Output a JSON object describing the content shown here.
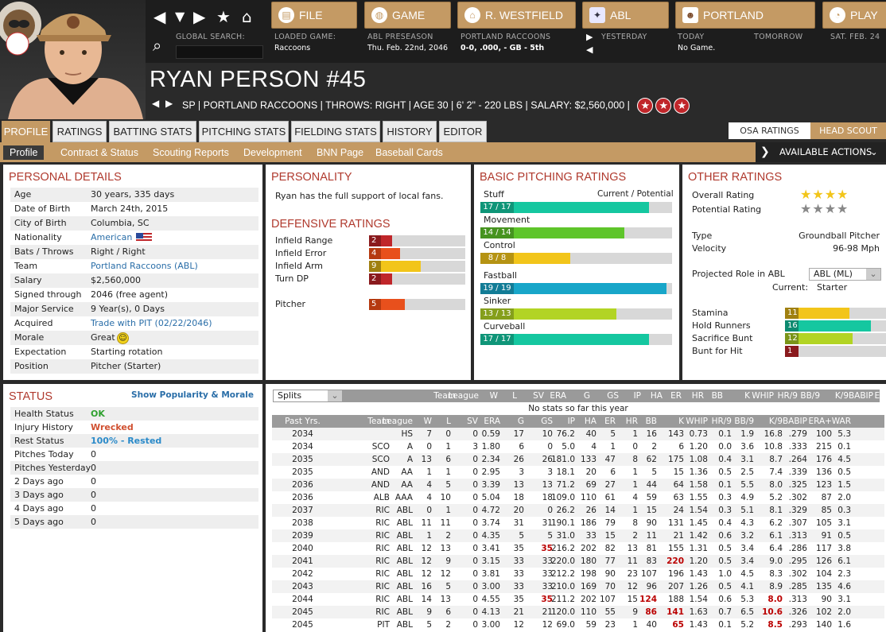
{
  "nav": {
    "file": "FILE",
    "game": "GAME",
    "team": "R. WESTFIELD",
    "league": "ABL",
    "club": "PORTLAND",
    "play": "PLAY"
  },
  "info": {
    "search_label": "GLOBAL SEARCH:",
    "loaded_label": "LOADED GAME:",
    "loaded_value": "Raccoons",
    "league_label": "ABL PRESEASON",
    "league_value": "Thu. Feb. 22nd, 2046",
    "team_label": "PORTLAND RACCOONS",
    "team_value": "0-0, .000, - GB - 5th",
    "yesterday": "YESTERDAY",
    "today_label": "TODAY",
    "today_value": "No Game.",
    "tomorrow": "TOMORROW",
    "sat": "SAT. FEB. 24"
  },
  "player": {
    "name": "RYAN PERSON  #45",
    "line": "SP | PORTLAND RACCOONS  |  THROWS: RIGHT  |  AGE 30  |  6' 2\" - 220 LBS  |  SALARY: $2,560,000  |"
  },
  "tabs": [
    "PROFILE",
    "RATINGS",
    "BATTING STATS",
    "PITCHING STATS",
    "FIELDING STATS",
    "HISTORY",
    "EDITOR"
  ],
  "right_tabs": {
    "osa": "OSA RATINGS",
    "scout": "HEAD SCOUT"
  },
  "subtabs": [
    "Profile",
    "Contract & Status",
    "Scouting Reports",
    "Development",
    "BNN Page",
    "Baseball Cards"
  ],
  "actions": "AVAILABLE ACTIONS",
  "personal": {
    "title": "PERSONAL DETAILS",
    "rows": [
      {
        "k": "Age",
        "v": "30 years, 335 days"
      },
      {
        "k": "Date of Birth",
        "v": "March 24th, 2015"
      },
      {
        "k": "City of Birth",
        "v": "Columbia, SC"
      },
      {
        "k": "Nationality",
        "v": "American"
      },
      {
        "k": "Bats / Throws",
        "v": "Right / Right"
      },
      {
        "k": "Team",
        "v": "Portland Raccoons (ABL)"
      },
      {
        "k": "Salary",
        "v": "$2,560,000"
      },
      {
        "k": "Signed through",
        "v": "2046 (free agent)"
      },
      {
        "k": "Major Service",
        "v": "9 Year(s), 0 Days"
      },
      {
        "k": "Acquired",
        "v": "Trade with PIT (02/22/2046)"
      },
      {
        "k": "Morale",
        "v": "Great"
      },
      {
        "k": "Expectation",
        "v": "Starting rotation"
      },
      {
        "k": "Position",
        "v": "Pitcher (Starter)"
      }
    ]
  },
  "personality": {
    "title": "PERSONALITY",
    "text": "Ryan has the full support of local fans."
  },
  "defensive": {
    "title": "DEFENSIVE RATINGS",
    "rows": [
      {
        "k": "Infield Range",
        "v": "2",
        "frac": 0.24,
        "color": "#c0262a",
        "dark": "#8a1a1d"
      },
      {
        "k": "Infield Error",
        "v": "4",
        "frac": 0.32,
        "color": "#e8501c",
        "dark": "#b53a10"
      },
      {
        "k": "Infield Arm",
        "v": "9",
        "frac": 0.54,
        "color": "#f2c51a",
        "dark": "#a08010"
      },
      {
        "k": "Turn DP",
        "v": "2",
        "frac": 0.24,
        "color": "#c0262a",
        "dark": "#8a1a1d"
      },
      {
        "k": "Pitcher",
        "v": "5",
        "frac": 0.37,
        "color": "#e8501c",
        "dark": "#b53a10"
      }
    ]
  },
  "pitching": {
    "title": "BASIC PITCHING RATINGS",
    "head": "Current / Potential",
    "rows": [
      {
        "k": "Stuff",
        "v": "17 / 17",
        "frac": 0.88,
        "color": "#15c7a0"
      },
      {
        "k": "Movement",
        "v": "14 / 14",
        "frac": 0.75,
        "color": "#5ec52a"
      },
      {
        "k": "Control",
        "v": "8 / 8",
        "frac": 0.47,
        "color": "#f2c51a"
      },
      {
        "k": "Fastball",
        "v": "19 / 19",
        "frac": 0.97,
        "color": "#18a6c9"
      },
      {
        "k": "Sinker",
        "v": "13 / 13",
        "frac": 0.71,
        "color": "#b2d424"
      },
      {
        "k": "Curveball",
        "v": "17 / 17",
        "frac": 0.88,
        "color": "#15c7a0"
      }
    ]
  },
  "other": {
    "title": "OTHER RATINGS",
    "overall_label": "Overall Rating",
    "overall_stars": 4,
    "potential_label": "Potential Rating",
    "potential_stars": 4,
    "type_label": "Type",
    "type_value": "Groundball Pitcher",
    "velo_label": "Velocity",
    "velo_value": "96-98 Mph",
    "role_label": "Projected Role in ABL",
    "role_select": "ABL (ML)",
    "current_label": "Current:",
    "current_value": "Starter",
    "bars": [
      {
        "k": "Stamina",
        "v": "11",
        "frac": 0.64,
        "color": "#f2c51a",
        "dark": "#a08010"
      },
      {
        "k": "Hold Runners",
        "v": "16",
        "frac": 0.85,
        "color": "#15c7a0",
        "dark": "#0d8a70"
      },
      {
        "k": "Sacrifice Bunt",
        "v": "12",
        "frac": 0.67,
        "color": "#b2d424",
        "dark": "#7a9418"
      },
      {
        "k": "Bunt for Hit",
        "v": "1",
        "frac": 0.13,
        "color": "#c0262a",
        "dark": "#8a1a1d"
      }
    ]
  },
  "status": {
    "title": "STATUS",
    "link": "Show Popularity & Morale",
    "rows": [
      {
        "k": "Health Status",
        "v": "OK",
        "color": "#2ea02e"
      },
      {
        "k": "Injury History",
        "v": "Wrecked",
        "color": "#d05030"
      },
      {
        "k": "Rest Status",
        "v": "100% - Rested",
        "color": "#2a8ac9"
      },
      {
        "k": "Pitches Today",
        "v": "0",
        "color": "#222"
      },
      {
        "k": "Pitches Yesterday",
        "v": "0",
        "color": "#222"
      },
      {
        "k": "2 Days ago",
        "v": "0",
        "color": "#222"
      },
      {
        "k": "3 Days ago",
        "v": "0",
        "color": "#222"
      },
      {
        "k": "4 Days ago",
        "v": "0",
        "color": "#222"
      },
      {
        "k": "5 Days ago",
        "v": "0",
        "color": "#222"
      }
    ]
  },
  "stats": {
    "splits": "Splits",
    "headers": [
      "Team",
      "League",
      "W",
      "L",
      "SV",
      "ERA",
      "G",
      "GS",
      "IP",
      "HA",
      "ER",
      "HR",
      "BB",
      "K",
      "WHIP",
      "HR/9",
      "BB/9",
      "K/9",
      "BABIP",
      "ERA+",
      "WAR"
    ],
    "no_stats": "No stats so far this year",
    "past": "Past Yrs.",
    "rows": [
      [
        "2034",
        "",
        "HS",
        "7",
        "0",
        "0",
        "0.59",
        "17",
        "10",
        "76.2",
        "40",
        "5",
        "1",
        "16",
        "143",
        "0.73",
        "0.1",
        "1.9",
        "16.8",
        ".279",
        "100",
        "5.3"
      ],
      [
        "2034",
        "SCO",
        "A",
        "0",
        "1",
        "3",
        "1.80",
        "6",
        "0",
        "5.0",
        "4",
        "1",
        "0",
        "2",
        "6",
        "1.20",
        "0.0",
        "3.6",
        "10.8",
        ".333",
        "215",
        "0.1"
      ],
      [
        "2035",
        "SCO",
        "A",
        "13",
        "6",
        "0",
        "2.34",
        "26",
        "26",
        "181.0",
        "133",
        "47",
        "8",
        "62",
        "175",
        "1.08",
        "0.4",
        "3.1",
        "8.7",
        ".264",
        "176",
        "4.5"
      ],
      [
        "2035",
        "AND",
        "AA",
        "1",
        "1",
        "0",
        "2.95",
        "3",
        "3",
        "18.1",
        "20",
        "6",
        "1",
        "5",
        "15",
        "1.36",
        "0.5",
        "2.5",
        "7.4",
        ".339",
        "136",
        "0.5"
      ],
      [
        "2036",
        "AND",
        "AA",
        "4",
        "5",
        "0",
        "3.39",
        "13",
        "13",
        "71.2",
        "69",
        "27",
        "1",
        "44",
        "64",
        "1.58",
        "0.1",
        "5.5",
        "8.0",
        ".325",
        "123",
        "1.5"
      ],
      [
        "2036",
        "ALB",
        "AAA",
        "4",
        "10",
        "0",
        "5.04",
        "18",
        "18",
        "109.0",
        "110",
        "61",
        "4",
        "59",
        "63",
        "1.55",
        "0.3",
        "4.9",
        "5.2",
        ".302",
        "87",
        "2.0"
      ],
      [
        "2037",
        "RIC",
        "ABL",
        "0",
        "1",
        "0",
        "4.72",
        "20",
        "0",
        "26.2",
        "26",
        "14",
        "1",
        "15",
        "24",
        "1.54",
        "0.3",
        "5.1",
        "8.1",
        ".329",
        "85",
        "0.3"
      ],
      [
        "2038",
        "RIC",
        "ABL",
        "11",
        "11",
        "0",
        "3.74",
        "31",
        "31",
        "190.1",
        "186",
        "79",
        "8",
        "90",
        "131",
        "1.45",
        "0.4",
        "4.3",
        "6.2",
        ".307",
        "105",
        "3.1"
      ],
      [
        "2039",
        "RIC",
        "ABL",
        "1",
        "2",
        "0",
        "4.35",
        "5",
        "5",
        "31.0",
        "33",
        "15",
        "2",
        "11",
        "21",
        "1.42",
        "0.6",
        "3.2",
        "6.1",
        ".313",
        "91",
        "0.5"
      ],
      [
        "2040",
        "RIC",
        "ABL",
        "12",
        "13",
        "0",
        "3.41",
        "35",
        "35",
        "216.2",
        "202",
        "82",
        "13",
        "81",
        "155",
        "1.31",
        "0.5",
        "3.4",
        "6.4",
        ".286",
        "117",
        "3.8"
      ],
      [
        "2041",
        "RIC",
        "ABL",
        "12",
        "9",
        "0",
        "3.15",
        "33",
        "33",
        "220.0",
        "180",
        "77",
        "11",
        "83",
        "220",
        "1.20",
        "0.5",
        "3.4",
        "9.0",
        ".295",
        "126",
        "6.1"
      ],
      [
        "2042",
        "RIC",
        "ABL",
        "12",
        "12",
        "0",
        "3.81",
        "33",
        "33",
        "212.2",
        "198",
        "90",
        "23",
        "107",
        "196",
        "1.43",
        "1.0",
        "4.5",
        "8.3",
        ".302",
        "104",
        "2.3"
      ],
      [
        "2043",
        "RIC",
        "ABL",
        "16",
        "5",
        "0",
        "3.00",
        "33",
        "33",
        "210.0",
        "169",
        "70",
        "12",
        "96",
        "207",
        "1.26",
        "0.5",
        "4.1",
        "8.9",
        ".285",
        "135",
        "4.6"
      ],
      [
        "2044",
        "RIC",
        "ABL",
        "14",
        "13",
        "0",
        "4.55",
        "35",
        "35",
        "211.2",
        "202",
        "107",
        "15",
        "124",
        "188",
        "1.54",
        "0.6",
        "5.3",
        "8.0",
        ".313",
        "90",
        "3.1"
      ],
      [
        "2045",
        "RIC",
        "ABL",
        "9",
        "6",
        "0",
        "4.13",
        "21",
        "21",
        "120.0",
        "110",
        "55",
        "9",
        "86",
        "141",
        "1.63",
        "0.7",
        "6.5",
        "10.6",
        ".326",
        "102",
        "2.0"
      ],
      [
        "2045",
        "PIT",
        "ABL",
        "5",
        "2",
        "0",
        "3.00",
        "12",
        "12",
        "69.0",
        "59",
        "23",
        "1",
        "40",
        "65",
        "1.43",
        "0.1",
        "5.2",
        "8.5",
        ".293",
        "140",
        "1.6"
      ]
    ],
    "highlights": {
      "9": [
        8
      ],
      "10": [
        14,
        22
      ],
      "13": [
        8,
        13,
        18
      ],
      "14": [
        13,
        14,
        18
      ],
      "15": [
        14,
        18
      ]
    }
  }
}
